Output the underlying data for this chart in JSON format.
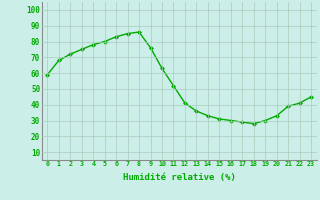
{
  "x": [
    0,
    1,
    2,
    3,
    4,
    5,
    6,
    7,
    8,
    9,
    10,
    11,
    12,
    13,
    14,
    15,
    16,
    17,
    18,
    19,
    20,
    21,
    22,
    23
  ],
  "y": [
    59,
    68,
    72,
    75,
    78,
    80,
    83,
    85,
    86,
    76,
    63,
    52,
    41,
    36,
    33,
    31,
    30,
    29,
    28,
    30,
    33,
    39,
    41,
    45
  ],
  "xlabel": "Humidité relative (%)",
  "ylabel_ticks": [
    10,
    20,
    30,
    40,
    50,
    60,
    70,
    80,
    90,
    100
  ],
  "ylim": [
    5,
    105
  ],
  "xlim": [
    -0.5,
    23.5
  ],
  "line_color": "#00aa00",
  "marker": "D",
  "marker_size": 2.0,
  "line_width": 1.0,
  "bg_color": "#cceee8",
  "grid_color": "#aaccbb",
  "axis_color": "#888888",
  "xlabel_fontsize": 6.5,
  "ytick_fontsize": 5.5,
  "xtick_fontsize": 4.8
}
